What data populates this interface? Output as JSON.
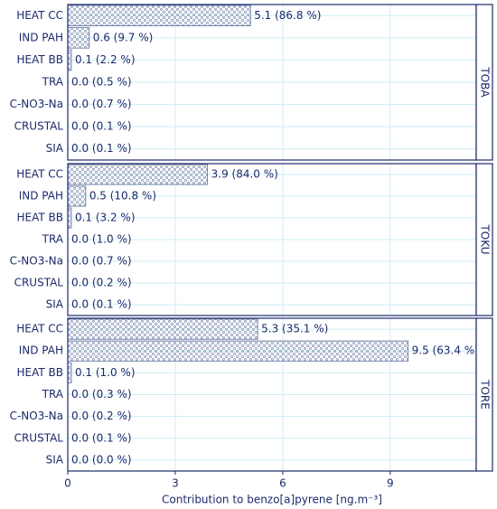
{
  "chart_data": [
    {
      "type": "bar",
      "title": "TOBA",
      "categories": [
        "HEAT CC",
        "IND PAH",
        "HEAT BB",
        "TRA",
        "C-NO3-Na",
        "CRUSTAL",
        "SIA"
      ],
      "values": [
        5.1,
        0.6,
        0.1,
        0.0,
        0.0,
        0.0,
        0.0
      ],
      "value_labels": [
        "5.1 (86.8 %)",
        "0.6 (9.7 %)",
        "0.1 (2.2 %)",
        "0.0 (0.5 %)",
        "0.0 (0.7 %)",
        "0.0 (0.1 %)",
        "0.0 (0.1 %)"
      ],
      "color": "#5a6f9a",
      "xlim": [
        0,
        11.4
      ],
      "xticks": [
        0,
        3,
        6,
        9
      ],
      "grid": true
    },
    {
      "type": "bar",
      "title": "TOKU",
      "categories": [
        "HEAT CC",
        "IND PAH",
        "HEAT BB",
        "TRA",
        "C-NO3-Na",
        "CRUSTAL",
        "SIA"
      ],
      "values": [
        3.9,
        0.5,
        0.1,
        0.0,
        0.0,
        0.0,
        0.0
      ],
      "value_labels": [
        "3.9 (84.0 %)",
        "0.5 (10.8 %)",
        "0.1 (3.2 %)",
        "0.0 (1.0 %)",
        "0.0 (0.7 %)",
        "0.0 (0.2 %)",
        "0.0 (0.1 %)"
      ],
      "color": "#5a6f9a",
      "xlim": [
        0,
        11.4
      ],
      "xticks": [
        0,
        3,
        6,
        9
      ],
      "grid": true
    },
    {
      "type": "bar",
      "title": "TORE",
      "categories": [
        "HEAT CC",
        "IND PAH",
        "HEAT BB",
        "TRA",
        "C-NO3-Na",
        "CRUSTAL",
        "SIA"
      ],
      "values": [
        5.3,
        9.5,
        0.1,
        0.0,
        0.0,
        0.0,
        0.0
      ],
      "value_labels": [
        "5.3 (35.1 %)",
        "9.5 (63.4 %)",
        "0.1 (1.0 %)",
        "0.0 (0.3 %)",
        "0.0 (0.2 %)",
        "0.0 (0.1 %)",
        "0.0 (0.0 %)"
      ],
      "color": "#5a6f9a",
      "xlim": [
        0,
        11.4
      ],
      "xticks": [
        0,
        3,
        6,
        9
      ],
      "grid": true,
      "xlabel": "Contribution to benzo[a]pyrene [ng.m⁻³]"
    }
  ]
}
